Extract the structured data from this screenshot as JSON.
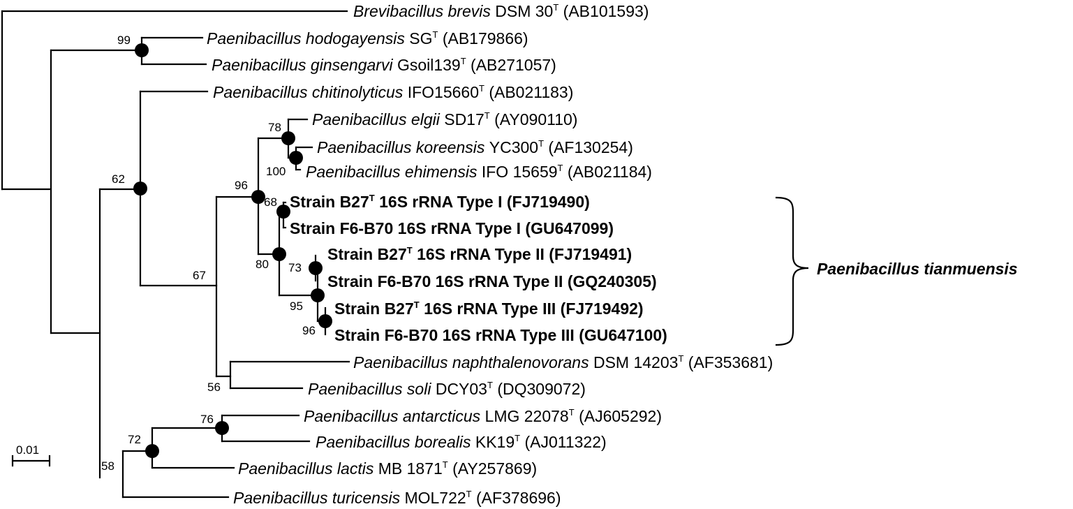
{
  "taxa": [
    {
      "id": "brevis",
      "italic": "Brevibacillus brevis",
      "strain": "DSM 30",
      "type_strain": true,
      "accession": "(AB101593)",
      "bold": false
    },
    {
      "id": "hodogayensis",
      "italic": "Paenibacillus hodogayensis",
      "strain": "SG",
      "type_strain": true,
      "accession": "(AB179866)",
      "bold": false
    },
    {
      "id": "ginsengarvi",
      "italic": "Paenibacillus ginsengarvi",
      "strain": "Gsoil139",
      "type_strain": true,
      "accession": "(AB271057)",
      "bold": false
    },
    {
      "id": "chitinolyticus",
      "italic": "Paenibacillus chitinolyticus",
      "strain": "IFO15660",
      "type_strain": true,
      "accession": "(AB021183)",
      "bold": false
    },
    {
      "id": "elgii",
      "italic": "Paenibacillus elgii",
      "strain": "SD17",
      "type_strain": true,
      "accession": "(AY090110)",
      "bold": false
    },
    {
      "id": "koreensis",
      "italic": "Paenibacillus koreensis",
      "strain": "YC300",
      "type_strain": true,
      "accession": "(AF130254)",
      "bold": false
    },
    {
      "id": "ehimensis",
      "italic": "Paenibacillus ehimensis",
      "strain": "IFO 15659",
      "type_strain": true,
      "accession": "(AB021184)",
      "bold": false
    },
    {
      "id": "b27-type1",
      "italic": "",
      "strain": "Strain B27",
      "type_strain": true,
      "accession": "16S rRNA Type I (FJ719490)",
      "bold": true
    },
    {
      "id": "f6b70-type1",
      "italic": "",
      "strain": "Strain F6-B70",
      "type_strain": false,
      "accession": "16S rRNA Type I (GU647099)",
      "bold": true
    },
    {
      "id": "b27-type2",
      "italic": "",
      "strain": "Strain B27",
      "type_strain": true,
      "accession": "16S rRNA Type II (FJ719491)",
      "bold": true
    },
    {
      "id": "f6b70-type2",
      "italic": "",
      "strain": "Strain F6-B70",
      "type_strain": false,
      "accession": "16S rRNA Type II (GQ240305)",
      "bold": true
    },
    {
      "id": "b27-type3",
      "italic": "",
      "strain": "Strain B27",
      "type_strain": true,
      "accession": "16S rRNA Type III (FJ719492)",
      "bold": true
    },
    {
      "id": "f6b70-type3",
      "italic": "",
      "strain": "Strain F6-B70",
      "type_strain": false,
      "accession": "16S rRNA Type III (GU647100)",
      "bold": true
    },
    {
      "id": "naphthalenovorans",
      "italic": "Paenibacillus naphthalenovorans",
      "strain": "DSM 14203",
      "type_strain": true,
      "accession": "(AF353681)",
      "bold": false
    },
    {
      "id": "soli",
      "italic": "Paenibacillus soli",
      "strain": "DCY03",
      "type_strain": true,
      "accession": "(DQ309072)",
      "bold": false
    },
    {
      "id": "antarcticus",
      "italic": "Paenibacillus antarcticus",
      "strain": "LMG 22078",
      "type_strain": true,
      "accession": "(AJ605292)",
      "bold": false
    },
    {
      "id": "borealis",
      "italic": "Paenibacillus borealis",
      "strain": "KK19",
      "type_strain": true,
      "accession": "(AJ011322)",
      "bold": false
    },
    {
      "id": "lactis",
      "italic": "Paenibacillus lactis",
      "strain": "MB 1871",
      "type_strain": true,
      "accession": "(AY257869)",
      "bold": false
    },
    {
      "id": "turicensis",
      "italic": "Paenibacillus turicensis",
      "strain": "MOL722",
      "type_strain": true,
      "accession": "(AF378696)",
      "bold": false
    }
  ],
  "type_strain_mark": "T",
  "bootstrap": [
    "99",
    "62",
    "78",
    "100",
    "96",
    "68",
    "80",
    "73",
    "95",
    "96",
    "67",
    "56",
    "76",
    "72",
    "58"
  ],
  "clade_label": "Paenibacillus tianmuensis",
  "scale_bar": {
    "label": "0.01",
    "length": 0.01
  }
}
